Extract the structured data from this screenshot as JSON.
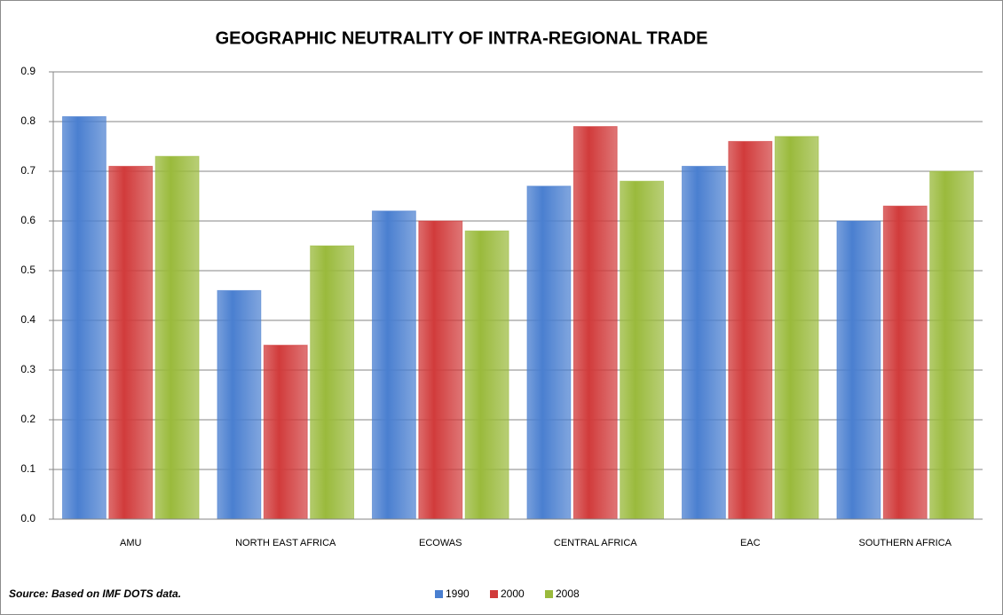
{
  "chart_data": {
    "type": "bar",
    "title": "GEOGRAPHIC NEUTRALITY OF  INTRA-REGIONAL TRADE",
    "categories": [
      "AMU",
      "NORTH EAST AFRICA",
      "ECOWAS",
      "CENTRAL AFRICA",
      "EAC",
      "SOUTHERN AFRICA"
    ],
    "series": [
      {
        "name": "1990",
        "color": "#4a7fd0",
        "values": [
          0.81,
          0.46,
          0.62,
          0.67,
          0.71,
          0.6
        ]
      },
      {
        "name": "2000",
        "color": "#d13b3b",
        "values": [
          0.71,
          0.35,
          0.6,
          0.79,
          0.76,
          0.63
        ]
      },
      {
        "name": "2008",
        "color": "#9aba3c",
        "values": [
          0.73,
          0.55,
          0.58,
          0.68,
          0.77,
          0.7
        ]
      }
    ],
    "ylim": [
      0,
      0.9
    ],
    "yticks": [
      {
        "value": 0,
        "label": "0.0"
      },
      0.1,
      0.2,
      0.3,
      0.4,
      0.5,
      0.6,
      0.7,
      0.8,
      0.9
    ],
    "grid": true,
    "legend": "bottom",
    "source": "Source: Based on IMF DOTS data."
  }
}
